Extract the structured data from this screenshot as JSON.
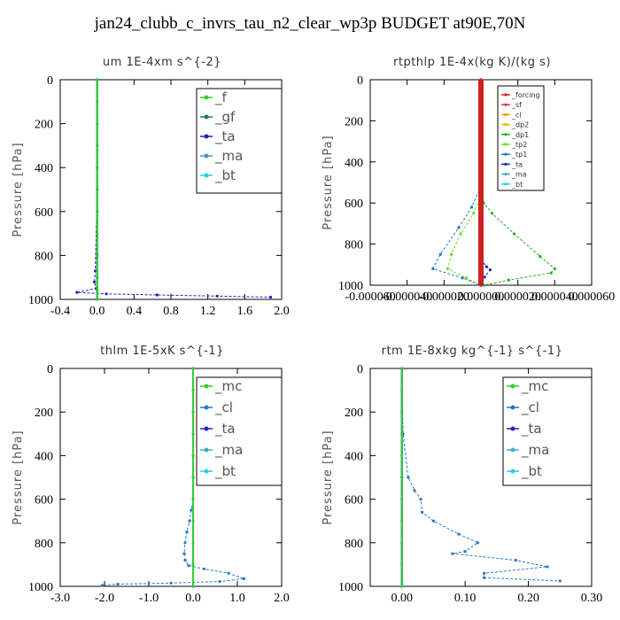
{
  "title": "jan24_clubb_c_invrs_tau_n2_clear_wp3p  BUDGET at90E,70N",
  "chart_data": [
    {
      "type": "line",
      "title": "um  1E-4xm s^{-2}",
      "ylabel": "Pressure [hPa]",
      "xlim": [
        -0.4,
        2.0
      ],
      "ylim": [
        1000,
        0
      ],
      "xticks": [
        "-0.4",
        "0.0",
        "0.4",
        "0.8",
        "1.2",
        "1.6",
        "2.0"
      ],
      "yticks": [
        "0",
        "200",
        "400",
        "600",
        "800",
        "1000"
      ],
      "legend_position": "top-right",
      "series": [
        {
          "name": "_f",
          "color": "#33cc33",
          "x": [
            0,
            0,
            0,
            0,
            0,
            0,
            0,
            0,
            0,
            0,
            0,
            0
          ],
          "y": [
            0,
            100,
            200,
            300,
            400,
            500,
            600,
            700,
            800,
            900,
            960,
            1000
          ]
        },
        {
          "name": "_gf",
          "color": "#1a7a7a",
          "x": [
            0,
            0,
            0,
            0,
            0,
            0,
            0,
            0
          ],
          "y": [
            0,
            200,
            400,
            600,
            800,
            900,
            960,
            1000
          ]
        },
        {
          "name": "_ta",
          "color": "#1f1fbf",
          "x": [
            0,
            0,
            -0.02,
            -0.03,
            -0.01,
            -0.22,
            0.1,
            0.65,
            1.3,
            1.88
          ],
          "y": [
            0,
            500,
            870,
            920,
            950,
            968,
            975,
            980,
            985,
            990
          ]
        },
        {
          "name": "_ma",
          "color": "#4499bb",
          "x": [
            0,
            0,
            0,
            0,
            0
          ],
          "y": [
            0,
            300,
            600,
            900,
            1000
          ]
        },
        {
          "name": "_bt",
          "color": "#22ccee",
          "x": [
            0,
            0,
            0,
            0
          ],
          "y": [
            0,
            400,
            800,
            1000
          ]
        }
      ]
    },
    {
      "type": "line",
      "title": "rtpthlp  1E-4x(kg K)/(kg s)",
      "ylabel": "Pressure [hPa]",
      "xlim": [
        -6e-05,
        6e-05
      ],
      "ylim": [
        1000,
        0
      ],
      "xticks": [
        "-0.000060",
        "-0.000040",
        "-0.000020",
        "0.000000",
        "0.000020",
        "0.000040",
        "0.000060"
      ],
      "yticks": [
        "0",
        "200",
        "400",
        "600",
        "800",
        "1000"
      ],
      "legend_position": "top-right",
      "series": [
        {
          "name": "_forcing",
          "color": "#cc2222",
          "x": [
            0,
            0,
            0,
            0,
            0,
            0
          ],
          "y": [
            0,
            200,
            400,
            600,
            800,
            1000
          ]
        },
        {
          "name": "_sf",
          "color": "#dd3333",
          "x": [
            0,
            0,
            0
          ],
          "y": [
            0,
            500,
            1000
          ]
        },
        {
          "name": "_cl",
          "color": "#ee9900",
          "x": [
            0,
            0,
            0
          ],
          "y": [
            0,
            500,
            1000
          ]
        },
        {
          "name": "_dp2",
          "color": "#ddbb00",
          "x": [
            0,
            0,
            0
          ],
          "y": [
            0,
            500,
            1000
          ]
        },
        {
          "name": "_dp1",
          "color": "#22aa22",
          "x": [
            0,
            1.5e-06,
            6e-06,
            1.8e-05,
            3.2e-05,
            4e-05,
            3.8e-05,
            1.5e-05,
            1.5e-06
          ],
          "y": [
            550,
            600,
            650,
            750,
            860,
            920,
            940,
            975,
            1000
          ]
        },
        {
          "name": "_tp2",
          "color": "#66dd22",
          "x": [
            0,
            -4e-06,
            -1.1e-05,
            -1.6e-05,
            -1.8e-05,
            -8e-06,
            0
          ],
          "y": [
            560,
            650,
            750,
            850,
            920,
            965,
            1000
          ]
        },
        {
          "name": "_tp1",
          "color": "#2277cc",
          "x": [
            0,
            -5e-06,
            -1.2e-05,
            -2.2e-05,
            -2.6e-05,
            -1e-05,
            0
          ],
          "y": [
            520,
            620,
            720,
            850,
            920,
            965,
            1000
          ]
        },
        {
          "name": "_ta",
          "color": "#2222cc",
          "x": [
            0,
            5e-07,
            3e-06,
            5e-06,
            2e-06,
            0
          ],
          "y": [
            700,
            880,
            910,
            925,
            960,
            1000
          ]
        },
        {
          "name": "_ma",
          "color": "#44aacc",
          "x": [
            0,
            0,
            0
          ],
          "y": [
            0,
            500,
            1000
          ]
        },
        {
          "name": "_bt",
          "color": "#22ccee",
          "x": [
            0,
            0,
            0
          ],
          "y": [
            0,
            500,
            1000
          ]
        }
      ]
    },
    {
      "type": "line",
      "title": "thlm  1E-5xK s^{-1}",
      "ylabel": "Pressure [hPa]",
      "xlim": [
        -3.0,
        2.0
      ],
      "ylim": [
        1000,
        0
      ],
      "xticks": [
        "-3.0",
        "-2.0",
        "-1.0",
        "0.0",
        "1.0",
        "2.0"
      ],
      "yticks": [
        "0",
        "200",
        "400",
        "600",
        "800",
        "1000"
      ],
      "legend_position": "top-right",
      "series": [
        {
          "name": "_mc",
          "color": "#33cc33",
          "x": [
            0,
            0,
            0,
            0,
            0,
            0,
            0,
            0,
            0,
            0,
            0
          ],
          "y": [
            0,
            100,
            200,
            300,
            400,
            500,
            600,
            700,
            800,
            900,
            1000
          ]
        },
        {
          "name": "_cl",
          "color": "#2277cc",
          "x": [
            0,
            0,
            -0.04,
            -0.08,
            -0.14,
            -0.18,
            -0.2,
            -0.18,
            -0.1,
            0.25,
            0.8,
            1.15,
            0.6,
            -0.5,
            -1.7,
            -2.05
          ],
          "y": [
            0,
            600,
            650,
            700,
            750,
            800,
            850,
            880,
            905,
            920,
            940,
            965,
            978,
            985,
            990,
            995
          ]
        },
        {
          "name": "_ta",
          "color": "#2222cc",
          "x": [
            0,
            0,
            0
          ],
          "y": [
            0,
            500,
            1000
          ]
        },
        {
          "name": "_ma",
          "color": "#44aacc",
          "x": [
            0,
            0,
            0
          ],
          "y": [
            0,
            500,
            1000
          ]
        },
        {
          "name": "_bt",
          "color": "#22ccee",
          "x": [
            0,
            0,
            0
          ],
          "y": [
            0,
            500,
            1000
          ]
        }
      ]
    },
    {
      "type": "line",
      "title": "rtm  1E-8xkg kg^{-1} s^{-1}",
      "ylabel": "Pressure [hPa]",
      "xlim": [
        -0.05,
        0.3
      ],
      "ylim": [
        1000,
        0
      ],
      "xticks": [
        "0.00",
        "0.10",
        "0.20",
        "0.30"
      ],
      "yticks": [
        "0",
        "200",
        "400",
        "600",
        "800",
        "1000"
      ],
      "legend_position": "top-right",
      "series": [
        {
          "name": "_mc",
          "color": "#33cc33",
          "x": [
            0,
            0,
            0,
            0,
            0,
            0,
            0,
            0,
            0,
            0,
            0
          ],
          "y": [
            0,
            100,
            200,
            300,
            400,
            500,
            600,
            700,
            800,
            900,
            1000
          ]
        },
        {
          "name": "_cl",
          "color": "#2277cc",
          "x": [
            0,
            0.002,
            0.01,
            0.02,
            0.03,
            0.032,
            0.05,
            0.09,
            0.12,
            0.1,
            0.08,
            0.18,
            0.23,
            0.13,
            0.13,
            0.25
          ],
          "y": [
            0,
            300,
            500,
            560,
            600,
            660,
            700,
            760,
            800,
            840,
            850,
            880,
            910,
            940,
            960,
            975
          ]
        },
        {
          "name": "_ta",
          "color": "#2222cc",
          "x": [
            0,
            0,
            0
          ],
          "y": [
            0,
            500,
            1000
          ]
        },
        {
          "name": "_ma",
          "color": "#44aacc",
          "x": [
            0,
            0,
            0
          ],
          "y": [
            0,
            500,
            1000
          ]
        },
        {
          "name": "_bt",
          "color": "#22ccee",
          "x": [
            0,
            0,
            0
          ],
          "y": [
            0,
            500,
            1000
          ]
        }
      ]
    }
  ]
}
